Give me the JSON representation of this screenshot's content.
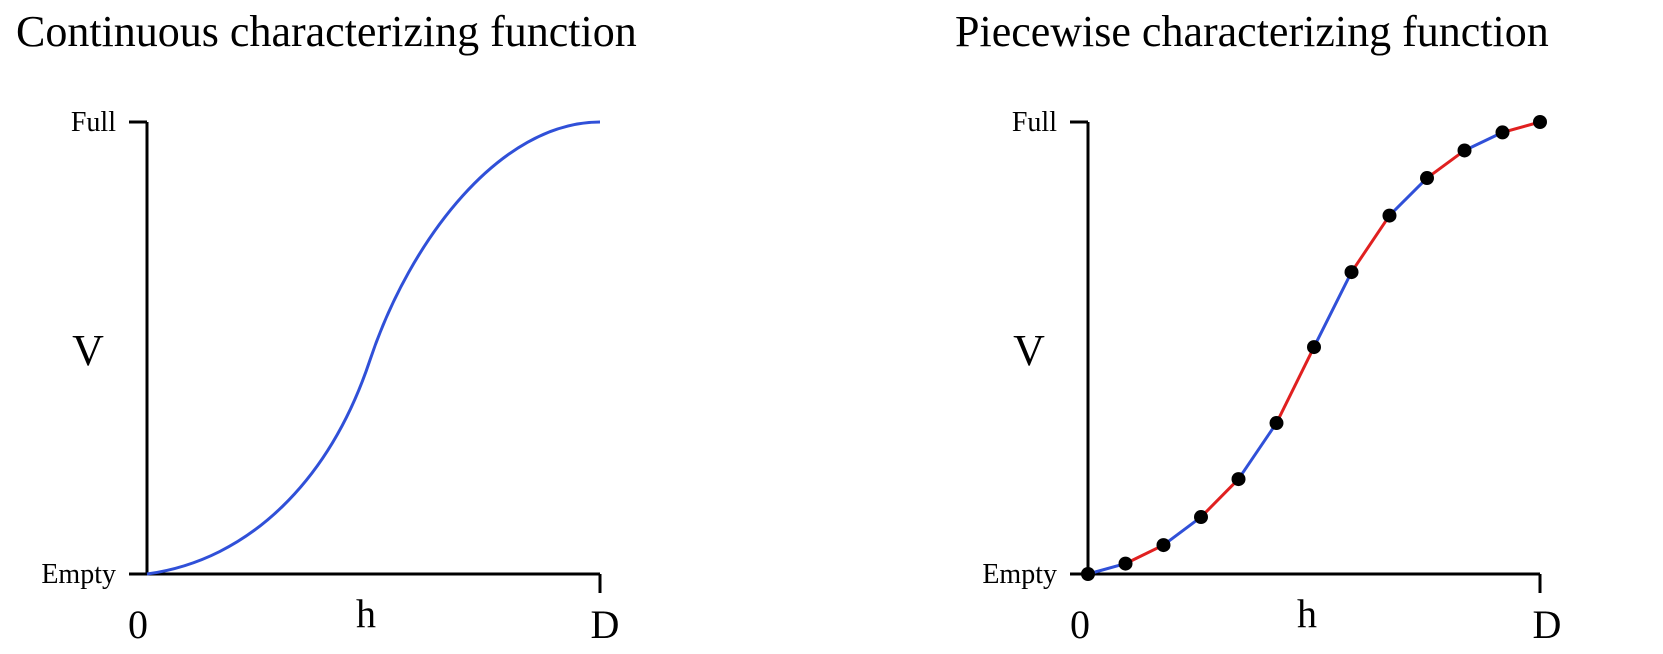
{
  "panels": [
    {
      "title": "Continuous characterizing function",
      "x_axis": {
        "label": "h",
        "ticks": [
          "0",
          "D"
        ]
      },
      "y_axis": {
        "label": "V",
        "ticks": [
          "Empty",
          "Full"
        ]
      },
      "curve_color": "#3050d8"
    },
    {
      "title": "Piecewise characterizing function",
      "x_axis": {
        "label": "h",
        "ticks": [
          "0",
          "D"
        ]
      },
      "y_axis": {
        "label": "V",
        "ticks": [
          "Empty",
          "Full"
        ]
      },
      "segment_colors": [
        "#3050d8",
        "#e02020"
      ],
      "points": [
        [
          0.0,
          0.0
        ],
        [
          0.083,
          0.023
        ],
        [
          0.167,
          0.064
        ],
        [
          0.25,
          0.126
        ],
        [
          0.333,
          0.21
        ],
        [
          0.417,
          0.334
        ],
        [
          0.5,
          0.502
        ],
        [
          0.583,
          0.668
        ],
        [
          0.667,
          0.793
        ],
        [
          0.75,
          0.876
        ],
        [
          0.833,
          0.937
        ],
        [
          0.917,
          0.977
        ],
        [
          1.0,
          1.0
        ]
      ],
      "marker_color": "#000000"
    }
  ]
}
